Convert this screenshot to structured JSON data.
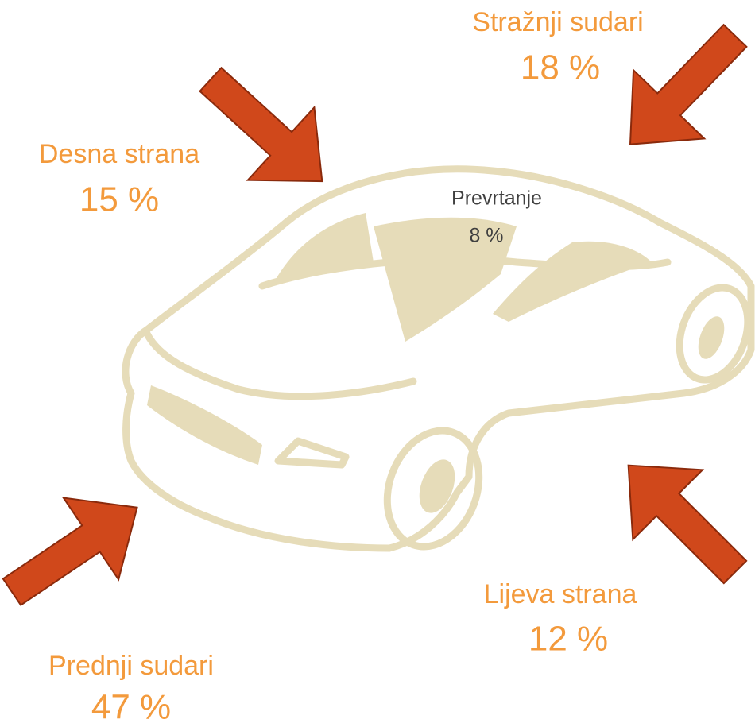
{
  "callouts": [
    {
      "label": "Stražnji sudari",
      "value": "18 %"
    },
    {
      "label": "Desna strana",
      "value": "15 %"
    },
    {
      "label": "Prevrtanje",
      "value": "8 %"
    },
    {
      "label": "Lijeva strana",
      "value": "12 %"
    },
    {
      "label": "Prednji sudari",
      "value": "47 %"
    }
  ]
}
